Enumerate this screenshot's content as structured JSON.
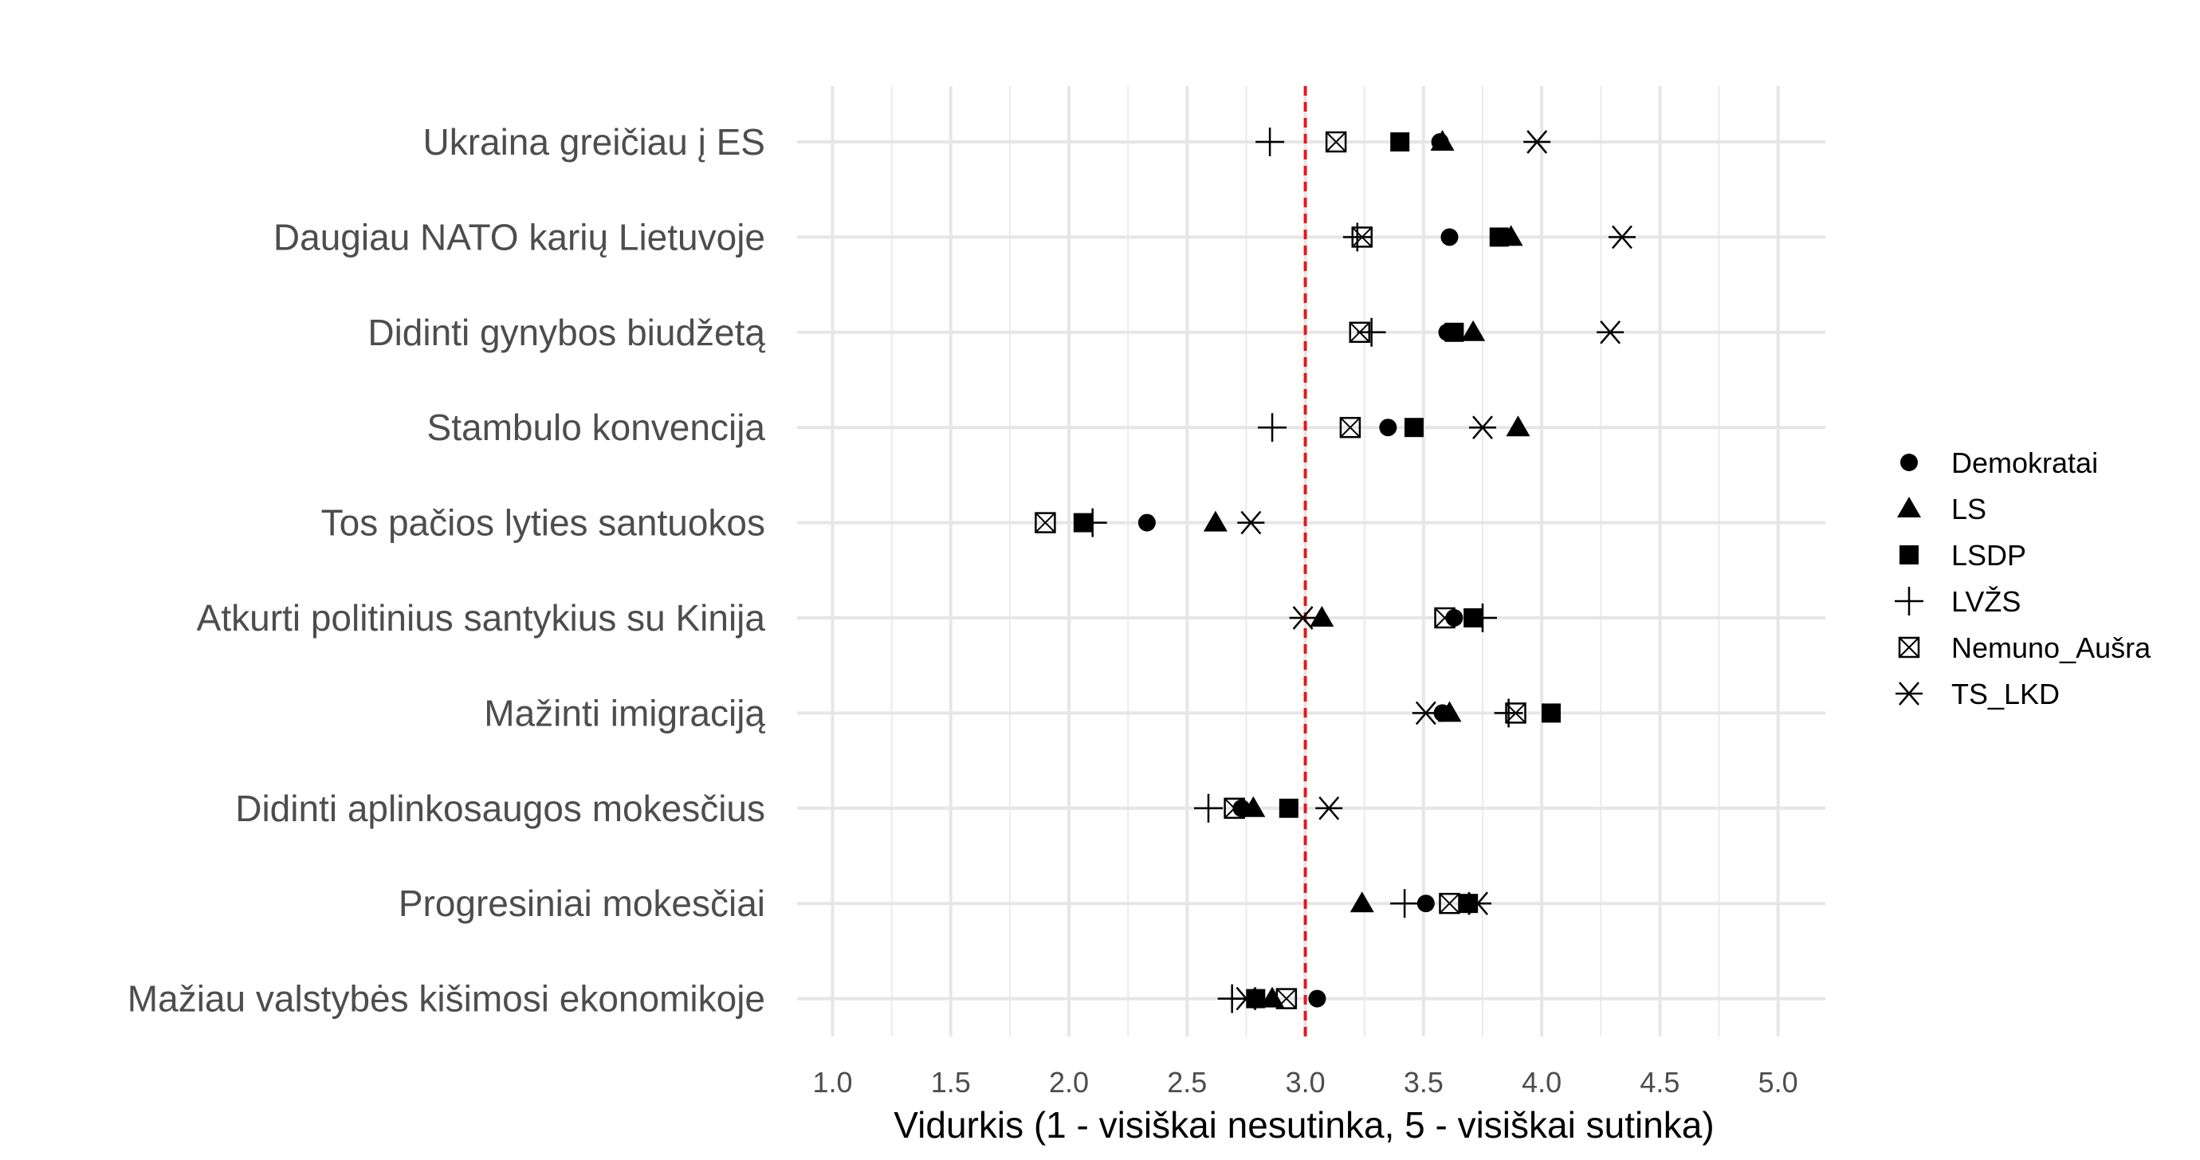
{
  "chart_data": {
    "type": "scatter",
    "xlabel": "Vidurkis (1 - visiškai nesutinka, 5 - visiškai sutinka)",
    "ylabel": "",
    "xlim": [
      0.85,
      5.2
    ],
    "x_ticks": [
      "1.0",
      "1.5",
      "2.0",
      "2.5",
      "3.0",
      "3.5",
      "4.0",
      "4.5",
      "5.0"
    ],
    "reference_line": {
      "x": 3.0,
      "style": "dashed",
      "color": "#e41a1c"
    },
    "grid": true,
    "legend_position": "right",
    "categories": [
      "Ukraina greičiau į ES",
      "Daugiau NATO karių Lietuvoje",
      "Didinti gynybos biudžetą",
      "Stambulo konvencija",
      "Tos pačios lyties santuokos",
      "Atkurti politinius santykius su Kinija",
      "Mažinti imigraciją",
      "Didinti aplinkosaugos mokesčius",
      "Progresiniai mokesčiai",
      "Mažiau valstybės kišimosi ekonomikoje"
    ],
    "series": [
      {
        "name": "Demokratai",
        "shape": "circle",
        "values": [
          3.57,
          3.61,
          3.6,
          3.35,
          2.33,
          3.63,
          3.58,
          2.73,
          3.51,
          3.05
        ]
      },
      {
        "name": "LS",
        "shape": "triangle",
        "values": [
          3.58,
          3.87,
          3.71,
          3.9,
          2.62,
          3.07,
          3.61,
          2.78,
          3.24,
          2.86
        ]
      },
      {
        "name": "LSDP",
        "shape": "square",
        "values": [
          3.4,
          3.82,
          3.63,
          3.46,
          2.06,
          3.71,
          4.04,
          2.93,
          3.69,
          2.79
        ]
      },
      {
        "name": "LVŽS",
        "shape": "plus",
        "values": [
          2.85,
          3.22,
          3.28,
          2.86,
          2.1,
          3.75,
          3.86,
          2.59,
          3.42,
          2.69
        ]
      },
      {
        "name": "Nemuno_Aušra",
        "shape": "boxcross",
        "values": [
          3.13,
          3.24,
          3.23,
          3.19,
          1.9,
          3.59,
          3.89,
          2.7,
          3.61,
          2.92
        ]
      },
      {
        "name": "TS_LKD",
        "shape": "asterisk",
        "values": [
          3.98,
          4.34,
          4.29,
          3.75,
          2.77,
          2.99,
          3.51,
          3.1,
          3.73,
          2.75
        ]
      }
    ]
  }
}
